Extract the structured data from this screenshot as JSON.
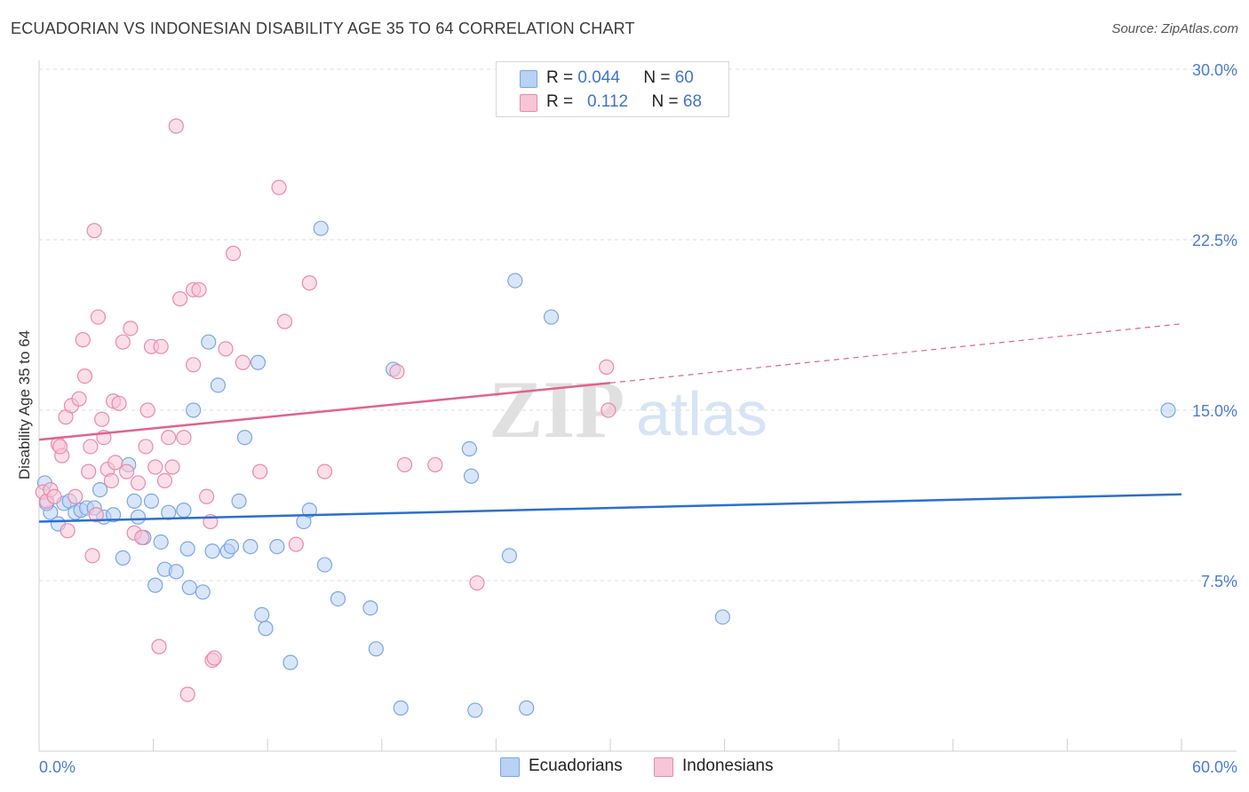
{
  "title": "ECUADORIAN VS INDONESIAN DISABILITY AGE 35 TO 64 CORRELATION CHART",
  "source": "Source: ZipAtlas.com",
  "watermark": {
    "zip": "ZIP",
    "atlas": "atlas"
  },
  "legend": {
    "rows": [
      {
        "r_label": "R =",
        "r_value": "0.044",
        "n_label": "N =",
        "n_value": "60",
        "color": "#b9d1f3",
        "border": "#7aa6e6"
      },
      {
        "r_label": "R =",
        "r_value": "0.112",
        "n_label": "N =",
        "n_value": "68",
        "color": "#f7c5d6",
        "border": "#e98aaa"
      }
    ]
  },
  "bottom_legend": [
    {
      "label": "Ecuadorians",
      "color": "#b9d1f3",
      "border": "#7aa6e6"
    },
    {
      "label": "Indonesians",
      "color": "#f7c5d6",
      "border": "#e98aaa"
    }
  ],
  "chart_data": {
    "type": "scatter",
    "title": "ECUADORIAN VS INDONESIAN DISABILITY AGE 35 TO 64 CORRELATION CHART",
    "xlabel": "",
    "ylabel": "Disability Age 35 to 64",
    "xlim": [
      0,
      60
    ],
    "ylim": [
      0,
      30
    ],
    "x_tick_labels": [
      "0.0%",
      "60.0%"
    ],
    "y_ticks": [
      7.5,
      15.0,
      22.5,
      30.0
    ],
    "y_tick_labels": [
      "7.5%",
      "15.0%",
      "22.5%",
      "30.0%"
    ],
    "grid": "horizontal dashed",
    "series": [
      {
        "name": "Ecuadorians",
        "color": "#7aa6e6",
        "fill": "#b9d1f3",
        "trend_color": "#2b6fd0",
        "trend": {
          "x0": 0,
          "y0": 10.1,
          "x1": 60,
          "y1": 11.3
        },
        "points": [
          [
            0.3,
            11.8
          ],
          [
            0.6,
            10.5
          ],
          [
            1.0,
            10.0
          ],
          [
            1.3,
            10.9
          ],
          [
            1.6,
            11.0
          ],
          [
            1.9,
            10.5
          ],
          [
            2.2,
            10.6
          ],
          [
            2.5,
            10.7
          ],
          [
            3.2,
            11.5
          ],
          [
            3.4,
            10.3
          ],
          [
            3.9,
            10.4
          ],
          [
            4.4,
            8.5
          ],
          [
            4.7,
            12.6
          ],
          [
            5.0,
            11.0
          ],
          [
            5.2,
            10.3
          ],
          [
            5.5,
            9.4
          ],
          [
            5.9,
            11.0
          ],
          [
            6.1,
            7.3
          ],
          [
            6.4,
            9.2
          ],
          [
            6.6,
            8.0
          ],
          [
            6.8,
            10.5
          ],
          [
            7.2,
            7.9
          ],
          [
            7.6,
            10.6
          ],
          [
            7.8,
            8.9
          ],
          [
            7.9,
            7.2
          ],
          [
            8.1,
            15.0
          ],
          [
            8.6,
            7.0
          ],
          [
            8.9,
            18.0
          ],
          [
            9.1,
            8.8
          ],
          [
            9.4,
            16.1
          ],
          [
            9.9,
            8.8
          ],
          [
            10.1,
            9.0
          ],
          [
            10.5,
            11.0
          ],
          [
            10.8,
            13.8
          ],
          [
            11.1,
            9.0
          ],
          [
            11.5,
            17.1
          ],
          [
            11.7,
            6.0
          ],
          [
            11.9,
            5.4
          ],
          [
            12.5,
            9.0
          ],
          [
            13.2,
            3.9
          ],
          [
            13.9,
            10.1
          ],
          [
            14.2,
            10.6
          ],
          [
            14.8,
            23.0
          ],
          [
            15.0,
            8.2
          ],
          [
            15.7,
            6.7
          ],
          [
            17.4,
            6.3
          ],
          [
            17.7,
            4.5
          ],
          [
            18.6,
            16.8
          ],
          [
            19.0,
            1.9
          ],
          [
            22.6,
            13.3
          ],
          [
            22.7,
            12.1
          ],
          [
            22.9,
            1.8
          ],
          [
            24.7,
            8.6
          ],
          [
            25.0,
            20.7
          ],
          [
            25.6,
            1.9
          ],
          [
            26.9,
            19.1
          ],
          [
            35.9,
            5.9
          ],
          [
            59.3,
            15.0
          ],
          [
            0.4,
            10.9
          ],
          [
            2.9,
            10.7
          ]
        ]
      },
      {
        "name": "Indonesians",
        "color": "#e98aaa",
        "fill": "#f7c5d6",
        "trend_color": "#e0628f",
        "trend": {
          "x0": 0,
          "y0": 13.7,
          "x1": 30,
          "y1": 16.2
        },
        "trend_dashed_to": {
          "x": 60,
          "y": 18.8
        },
        "points": [
          [
            0.2,
            11.4
          ],
          [
            0.4,
            11.0
          ],
          [
            0.6,
            11.5
          ],
          [
            0.8,
            11.2
          ],
          [
            1.0,
            13.5
          ],
          [
            1.2,
            13.0
          ],
          [
            1.4,
            14.7
          ],
          [
            1.5,
            9.7
          ],
          [
            1.7,
            15.2
          ],
          [
            1.9,
            11.2
          ],
          [
            2.1,
            15.5
          ],
          [
            2.3,
            18.1
          ],
          [
            2.4,
            16.5
          ],
          [
            2.6,
            12.3
          ],
          [
            2.7,
            13.4
          ],
          [
            2.8,
            8.6
          ],
          [
            2.9,
            22.9
          ],
          [
            3.1,
            19.1
          ],
          [
            3.3,
            14.6
          ],
          [
            3.4,
            13.8
          ],
          [
            3.6,
            12.4
          ],
          [
            3.8,
            11.9
          ],
          [
            3.9,
            15.4
          ],
          [
            4.0,
            12.7
          ],
          [
            4.2,
            15.3
          ],
          [
            4.4,
            18.0
          ],
          [
            4.6,
            12.3
          ],
          [
            4.8,
            18.6
          ],
          [
            5.0,
            9.6
          ],
          [
            5.2,
            11.8
          ],
          [
            5.4,
            9.4
          ],
          [
            5.6,
            13.4
          ],
          [
            5.7,
            15.0
          ],
          [
            5.9,
            17.8
          ],
          [
            6.1,
            12.5
          ],
          [
            6.3,
            4.6
          ],
          [
            6.4,
            17.8
          ],
          [
            6.6,
            11.9
          ],
          [
            6.8,
            13.8
          ],
          [
            7.0,
            12.5
          ],
          [
            7.2,
            27.5
          ],
          [
            7.4,
            19.9
          ],
          [
            7.6,
            13.8
          ],
          [
            7.8,
            2.5
          ],
          [
            8.1,
            17.0
          ],
          [
            8.1,
            20.3
          ],
          [
            8.4,
            20.3
          ],
          [
            8.8,
            11.2
          ],
          [
            9.0,
            10.1
          ],
          [
            9.1,
            4.0
          ],
          [
            9.2,
            4.1
          ],
          [
            9.8,
            17.7
          ],
          [
            10.2,
            21.9
          ],
          [
            10.7,
            17.1
          ],
          [
            11.6,
            12.3
          ],
          [
            12.6,
            24.8
          ],
          [
            12.9,
            18.9
          ],
          [
            13.5,
            9.1
          ],
          [
            14.2,
            20.6
          ],
          [
            15.0,
            12.3
          ],
          [
            18.8,
            16.7
          ],
          [
            19.2,
            12.6
          ],
          [
            20.8,
            12.6
          ],
          [
            23.0,
            7.4
          ],
          [
            29.8,
            16.9
          ],
          [
            29.9,
            15.0
          ],
          [
            1.1,
            13.4
          ],
          [
            3.0,
            10.4
          ]
        ]
      }
    ]
  }
}
